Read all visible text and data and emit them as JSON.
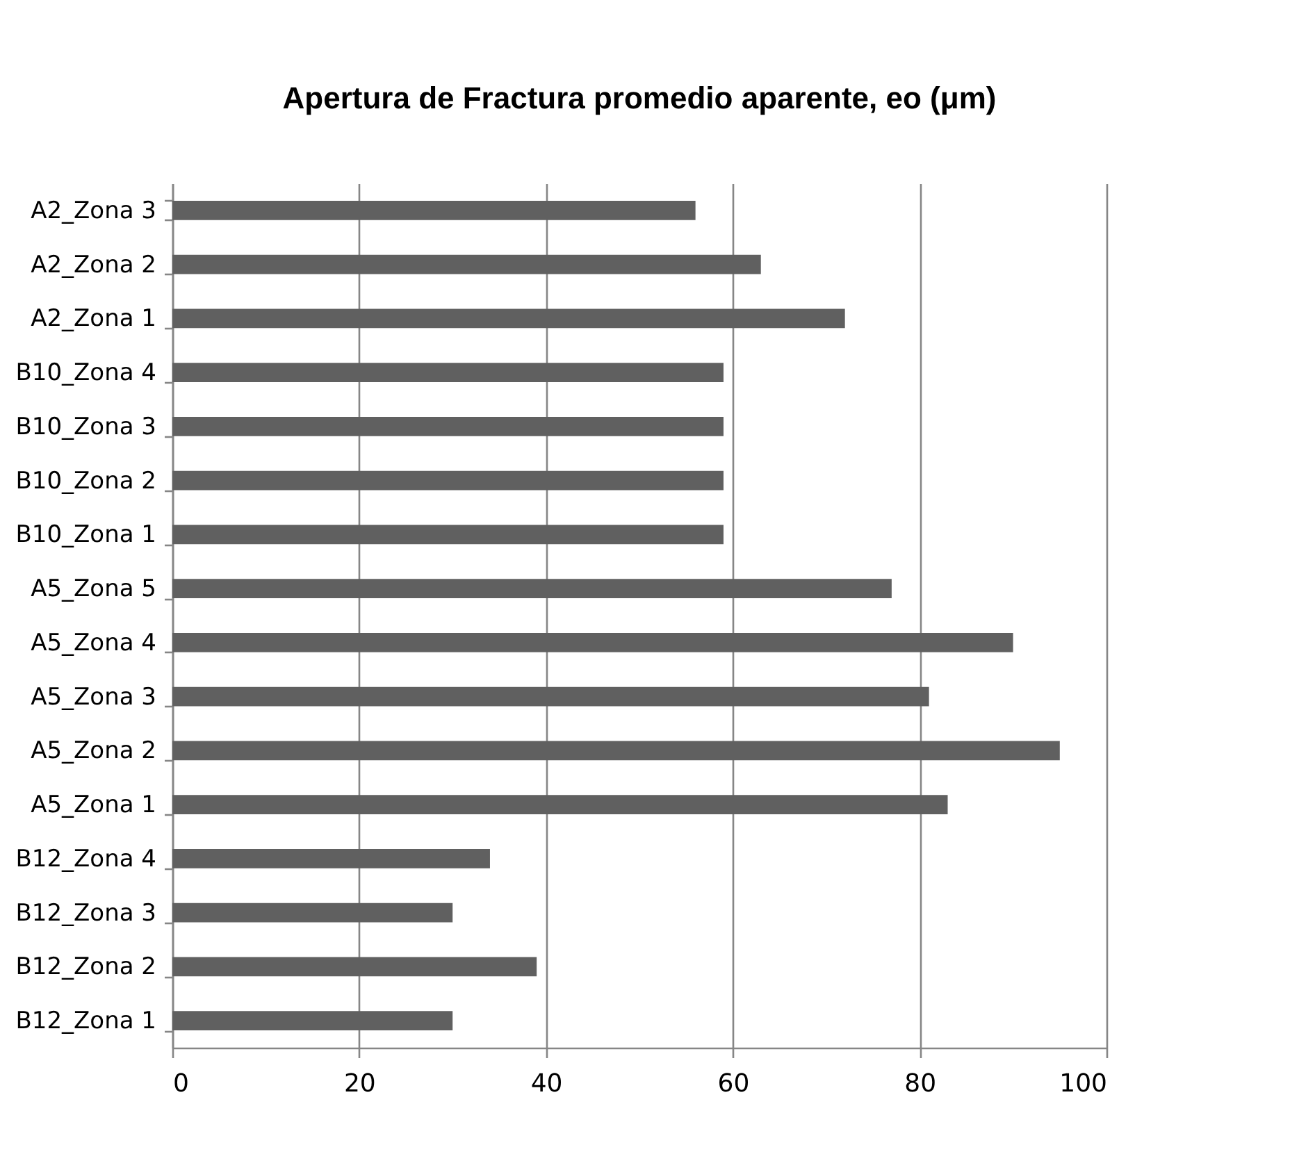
{
  "chart_data": {
    "type": "bar",
    "orientation": "horizontal",
    "title": "Apertura de Fractura promedio aparente, eo  (μm)",
    "categories": [
      "A2_Zona 3",
      "A2_Zona 2",
      "A2_Zona 1",
      "B10_Zona 4",
      "B10_Zona 3",
      "B10_Zona 2",
      "B10_Zona 1",
      "A5_Zona 5",
      "A5_Zona 4",
      "A5_Zona 3",
      "A5_Zona 2",
      "A5_Zona 1",
      "B12_Zona 4",
      "B12_Zona 3",
      "B12_Zona 2",
      "B12_Zona 1"
    ],
    "values": [
      56,
      63,
      72,
      59,
      59,
      59,
      59,
      77,
      90,
      81,
      95,
      83,
      34,
      30,
      39,
      30
    ],
    "color": "#606060",
    "xlim": [
      0,
      100
    ],
    "xticks": [
      0,
      20,
      40,
      60,
      80,
      100
    ],
    "grid": "x"
  }
}
